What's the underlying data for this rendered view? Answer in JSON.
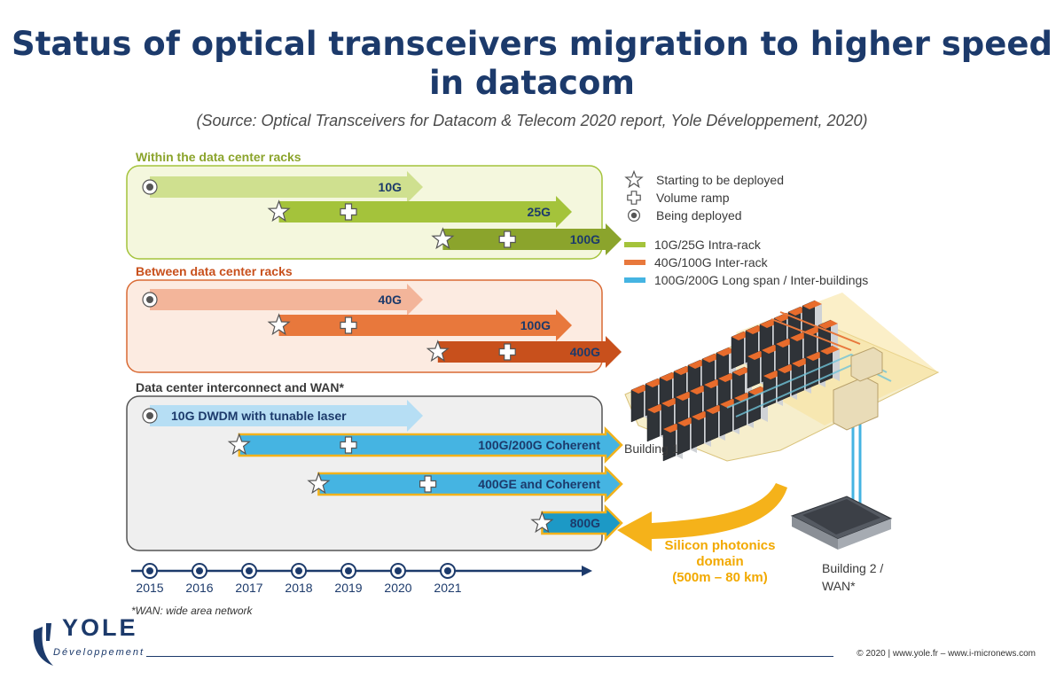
{
  "title": "Status of optical transceivers migration to higher speed in datacom",
  "subtitle": "(Source: Optical Transceivers for Datacom & Telecom 2020 report, Yole Développement, 2020)",
  "colors": {
    "green_light": "#cfe08f",
    "green": "#a4c33b",
    "green_dark": "#8ba42c",
    "orange_light": "#f3b59a",
    "orange": "#e8783c",
    "orange_dark": "#c8501c",
    "blue_light": "#b6def4",
    "blue": "#45b4e2",
    "blue_dark": "#1c99c6",
    "navy": "#1c3a6b",
    "gold": "#f2b21c"
  },
  "sections": [
    {
      "id": "racks",
      "title": "Within the data center racks",
      "title_color": "#8ba42c",
      "fill": "#f4f7dd",
      "stroke": "#a4c33b"
    },
    {
      "id": "between",
      "title": "Between data center racks",
      "title_color": "#c8501c",
      "fill": "#fcebe1",
      "stroke": "#d96a34"
    },
    {
      "id": "wan",
      "title": "Data center interconnect and WAN*",
      "title_color": "#3a3a3a",
      "fill": "#efefef",
      "stroke": "#555555"
    }
  ],
  "arrows": [
    {
      "section": 0,
      "label": "10G",
      "start_year": 2015,
      "end_year": 2020.5,
      "color": "#cfe08f",
      "text_color": "#1c3a6b",
      "markers": [
        {
          "type": "being",
          "year": 2015
        }
      ]
    },
    {
      "section": 0,
      "label": "25G",
      "start_year": 2017.6,
      "end_year": 2023.5,
      "color": "#a4c33b",
      "text_color": "#1c3a6b",
      "markers": [
        {
          "type": "star",
          "year": 2017.6
        },
        {
          "type": "plus",
          "year": 2019
        }
      ]
    },
    {
      "section": 0,
      "label": "100G",
      "start_year": 2020.9,
      "end_year": 2024.5,
      "color": "#8ba42c",
      "text_color": "#1c3a6b",
      "markers": [
        {
          "type": "star",
          "year": 2020.9
        },
        {
          "type": "plus",
          "year": 2022.2
        }
      ]
    },
    {
      "section": 1,
      "label": "40G",
      "start_year": 2015,
      "end_year": 2020.5,
      "color": "#f3b59a",
      "text_color": "#1c3a6b",
      "markers": [
        {
          "type": "being",
          "year": 2015
        }
      ]
    },
    {
      "section": 1,
      "label": "100G",
      "start_year": 2017.6,
      "end_year": 2023.5,
      "color": "#e8783c",
      "text_color": "#1c3a6b",
      "markers": [
        {
          "type": "star",
          "year": 2017.6
        },
        {
          "type": "plus",
          "year": 2019
        }
      ]
    },
    {
      "section": 1,
      "label": "400G",
      "start_year": 2020.8,
      "end_year": 2024.5,
      "color": "#c8501c",
      "text_color": "#1c3a6b",
      "markers": [
        {
          "type": "star",
          "year": 2020.8
        },
        {
          "type": "plus",
          "year": 2022.2
        }
      ]
    },
    {
      "section": 2,
      "label": "10G DWDM with  tunable laser",
      "start_year": 2015,
      "end_year": 2020.5,
      "color": "#b6def4",
      "text_color": "#1c3a6b",
      "label_pos": "left",
      "markers": [
        {
          "type": "being",
          "year": 2015
        }
      ]
    },
    {
      "section": 2,
      "label": "100G/200G Coherent",
      "start_year": 2016.8,
      "end_year": 2024.5,
      "color": "#45b4e2",
      "text_color": "#1c3a6b",
      "border": "#f2b21c",
      "markers": [
        {
          "type": "star",
          "year": 2016.8
        },
        {
          "type": "plus",
          "year": 2019
        }
      ]
    },
    {
      "section": 2,
      "label": "400GE and Coherent",
      "start_year": 2018.4,
      "end_year": 2024.5,
      "color": "#45b4e2",
      "text_color": "#1c3a6b",
      "border": "#f2b21c",
      "markers": [
        {
          "type": "star",
          "year": 2018.4
        },
        {
          "type": "plus",
          "year": 2020.6
        }
      ]
    },
    {
      "section": 2,
      "label": "800G",
      "start_year": 2022.9,
      "end_year": 2024.5,
      "color": "#1c99c6",
      "text_color": "#1c3a6b",
      "border": "#f2b21c",
      "markers": [
        {
          "type": "star",
          "year": 2022.9
        }
      ]
    }
  ],
  "timeline": {
    "years": [
      "2015",
      "2016",
      "2017",
      "2018",
      "2019",
      "2020",
      "2021"
    ]
  },
  "legend": {
    "markers": [
      {
        "type": "star",
        "label": "Starting to be deployed"
      },
      {
        "type": "plus",
        "label": "Volume ramp"
      },
      {
        "type": "being",
        "label": "Being deployed"
      }
    ],
    "lines": [
      {
        "color": "#a4c33b",
        "label": "10G/25G Intra-rack"
      },
      {
        "color": "#e8783c",
        "label": "40G/100G Inter-rack"
      },
      {
        "color": "#45b4e2",
        "label": "100G/200G Long span / Inter-buildings"
      }
    ]
  },
  "illustration": {
    "building1": "Building 1",
    "building2_line1": "Building 2 /",
    "building2_line2": "WAN*",
    "silicon_line1": "Silicon photonics",
    "silicon_line2": "domain",
    "silicon_line3": "(500m – 80 km)"
  },
  "footnote": "*WAN: wide area network",
  "logo": {
    "word": "YOLE",
    "sub": "Développement"
  },
  "copyright": "© 2020 | www.yole.fr – www.i-micronews.com"
}
